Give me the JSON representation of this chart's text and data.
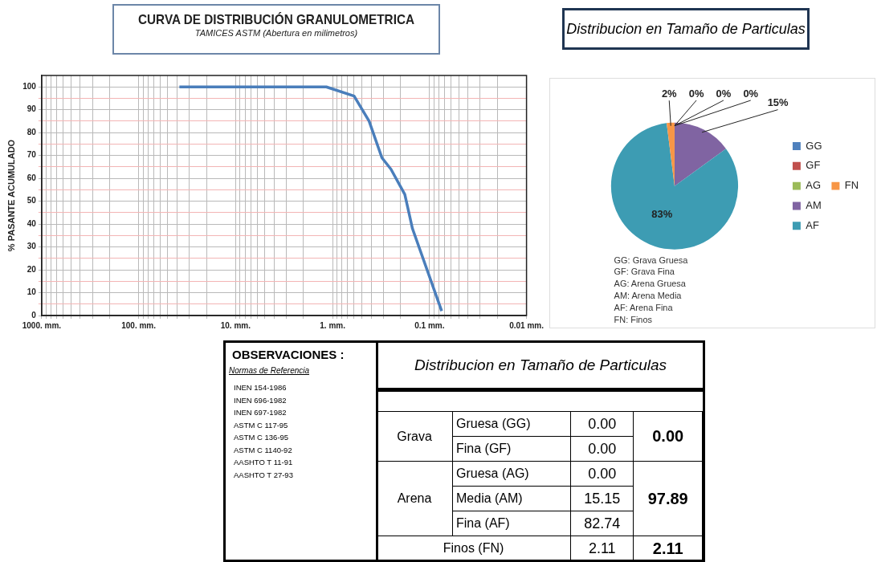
{
  "chart_data": [
    {
      "type": "line",
      "title": "CURVA DE DISTRIBUCIÓN GRANULOMETRICA",
      "subtitle": "TAMICES ASTM (Abertura en milimetros)",
      "ylabel": "% PASANTE ACUMULADO",
      "log": "x",
      "grid": true,
      "legend": false,
      "marker": "none",
      "line_style": "solid",
      "xlim": [
        1000,
        0.01
      ],
      "ylim": [
        0,
        105
      ],
      "xticks": [
        {
          "value": 1000,
          "label": "1000. mm."
        },
        {
          "value": 900,
          "label": null
        },
        {
          "value": 800,
          "label": null
        },
        {
          "value": 700,
          "label": null
        },
        {
          "value": 600,
          "label": null
        },
        {
          "value": 500,
          "label": null
        },
        {
          "value": 400,
          "label": null
        },
        {
          "value": 300,
          "label": null
        },
        {
          "value": 200,
          "label": null
        },
        {
          "value": 100,
          "label": "100. mm."
        },
        {
          "value": 90,
          "label": null
        },
        {
          "value": 80,
          "label": null
        },
        {
          "value": 70,
          "label": null
        },
        {
          "value": 60,
          "label": null
        },
        {
          "value": 50,
          "label": null
        },
        {
          "value": 40,
          "label": null
        },
        {
          "value": 30,
          "label": null
        },
        {
          "value": 20,
          "label": null
        },
        {
          "value": 10,
          "label": "10. mm."
        },
        {
          "value": 9,
          "label": null
        },
        {
          "value": 8,
          "label": null
        },
        {
          "value": 7,
          "label": null
        },
        {
          "value": 6,
          "label": null
        },
        {
          "value": 5,
          "label": null
        },
        {
          "value": 4,
          "label": null
        },
        {
          "value": 3,
          "label": null
        },
        {
          "value": 2,
          "label": null
        },
        {
          "value": 1,
          "label": "1. mm."
        },
        {
          "value": 0.9,
          "label": null
        },
        {
          "value": 0.8,
          "label": null
        },
        {
          "value": 0.7,
          "label": null
        },
        {
          "value": 0.6,
          "label": null
        },
        {
          "value": 0.5,
          "label": null
        },
        {
          "value": 0.4,
          "label": null
        },
        {
          "value": 0.3,
          "label": null
        },
        {
          "value": 0.2,
          "label": null
        },
        {
          "value": 0.1,
          "label": "0.1 mm."
        },
        {
          "value": 0.09,
          "label": null
        },
        {
          "value": 0.08,
          "label": null
        },
        {
          "value": 0.07,
          "label": null
        },
        {
          "value": 0.06,
          "label": null
        },
        {
          "value": 0.05,
          "label": null
        },
        {
          "value": 0.04,
          "label": null
        },
        {
          "value": 0.03,
          "label": null
        },
        {
          "value": 0.02,
          "label": null
        },
        {
          "value": 0.01,
          "label": "0.01 mm."
        }
      ],
      "yticks": [
        0,
        {
          "value": 5,
          "label": null
        },
        10,
        {
          "value": 15,
          "label": null
        },
        20,
        {
          "value": 25,
          "label": null
        },
        30,
        {
          "value": 35,
          "label": null
        },
        40,
        {
          "value": 45,
          "label": null
        },
        50,
        {
          "value": 55,
          "label": null
        },
        60,
        {
          "value": 65,
          "label": null
        },
        70,
        {
          "value": 75,
          "label": null
        },
        80,
        {
          "value": 85,
          "label": null
        },
        90,
        {
          "value": 95,
          "label": null
        },
        100
      ],
      "x": [
        38,
        1.16,
        0.6,
        0.42,
        0.31,
        0.25,
        0.18,
        0.15,
        0.075
      ],
      "series": [
        {
          "color": "#4a7ebb",
          "values": [
            100,
            100,
            96,
            85,
            69,
            64,
            53,
            38,
            2
          ]
        }
      ]
    },
    {
      "type": "pie",
      "title": "Distribucion en Tamaño de Particulas",
      "legend": "right",
      "categories": [
        "GG",
        "GF",
        "AG",
        "AM",
        "AF",
        "FN"
      ],
      "values": [
        0,
        0,
        0,
        15,
        83,
        2
      ],
      "colors": [
        "#4f81bd",
        "#c0504d",
        "#9bbb59",
        "#8064a2",
        "#3d9cb3",
        "#f79646"
      ],
      "value_labels": [
        "0%",
        "0%",
        "0%",
        "15%",
        "83%",
        "2%"
      ],
      "annotations": [
        "GG: Grava Gruesa",
        "GF: Grava Fina",
        "AG: Arena Gruesa",
        "AM: Arena Media",
        "AF: Arena Fina",
        "FN: Finos"
      ]
    },
    {
      "type": "other",
      "title": "Distribucion en Tamaño de Particulas",
      "annotations": [
        "OBSERVACIONES :",
        "Normas de Referencia",
        "INEN 154-1986",
        "INEN 696-1982",
        "INEN 697-1982",
        "ASTM C 117-95",
        "ASTM C 136-95",
        "ASTM C 1140-92",
        "AASHTO T 11-91",
        "AASHTO T 27-93",
        "Grava",
        "Gruesa (GG)",
        "0.00",
        "Fina (GF)",
        "0.00",
        "0.00",
        "Arena",
        "Gruesa (AG)",
        "0.00",
        "Media (AM)",
        "15.15",
        "Fina (AF)",
        "82.74",
        "97.89",
        "Finos (FN)",
        "2.11",
        "2.11"
      ]
    }
  ]
}
